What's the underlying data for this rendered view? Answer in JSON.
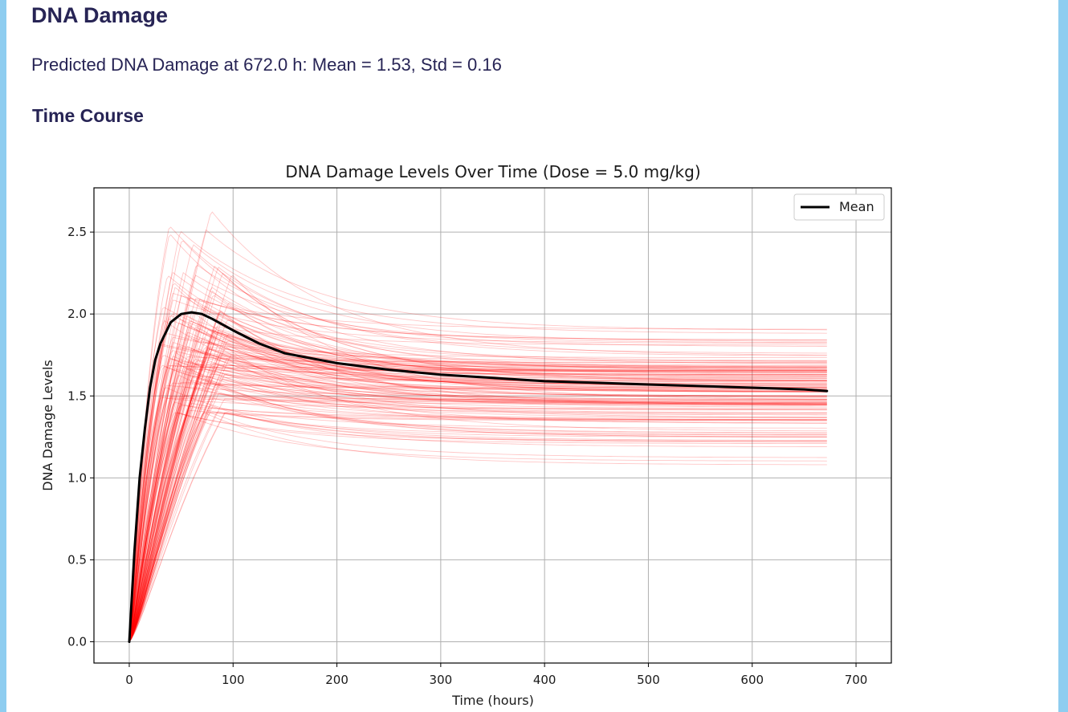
{
  "page": {
    "heading": "DNA Damage",
    "summary": "Predicted DNA Damage at 672.0 h: Mean = 1.53, Std = 0.16",
    "subheading": "Time Course"
  },
  "colors": {
    "background_accent": "#8ecdf0",
    "heading_text": "#272455",
    "sample_lines": "#ff0000",
    "mean_line": "#000000",
    "grid": "#b0b0b0"
  },
  "chart_data": {
    "type": "line",
    "title": "DNA Damage Levels Over Time (Dose = 5.0 mg/kg)",
    "xlabel": "Time (hours)",
    "ylabel": "DNA Damage Levels",
    "xlim": [
      -34,
      734
    ],
    "ylim": [
      -0.13,
      2.77
    ],
    "xticks": [
      0,
      100,
      200,
      300,
      400,
      500,
      600,
      700
    ],
    "xtick_labels": [
      "0",
      "100",
      "200",
      "300",
      "400",
      "500",
      "600",
      "700"
    ],
    "yticks": [
      0.0,
      0.5,
      1.0,
      1.5,
      2.0,
      2.5
    ],
    "ytick_labels": [
      "0.0",
      "0.5",
      "1.0",
      "1.5",
      "2.0",
      "2.5"
    ],
    "grid": true,
    "legend": {
      "position": "upper right",
      "entries": [
        "Mean"
      ]
    },
    "mean_series": {
      "name": "Mean",
      "x": [
        0,
        5,
        10,
        15,
        20,
        25,
        30,
        40,
        50,
        60,
        70,
        80,
        100,
        125,
        150,
        200,
        250,
        300,
        350,
        400,
        450,
        500,
        550,
        600,
        650,
        672
      ],
      "y": [
        0.0,
        0.55,
        1.0,
        1.3,
        1.55,
        1.72,
        1.82,
        1.95,
        2.0,
        2.01,
        2.0,
        1.97,
        1.9,
        1.82,
        1.76,
        1.7,
        1.66,
        1.63,
        1.61,
        1.59,
        1.58,
        1.57,
        1.56,
        1.55,
        1.54,
        1.53
      ]
    },
    "samples": {
      "count": 150,
      "color": "#ff0000",
      "x_max": 672,
      "final_value_range": [
        1.03,
        1.97
      ],
      "peak_value_range": [
        1.4,
        2.63
      ],
      "peak_time_range_hours": [
        30,
        100
      ]
    }
  }
}
